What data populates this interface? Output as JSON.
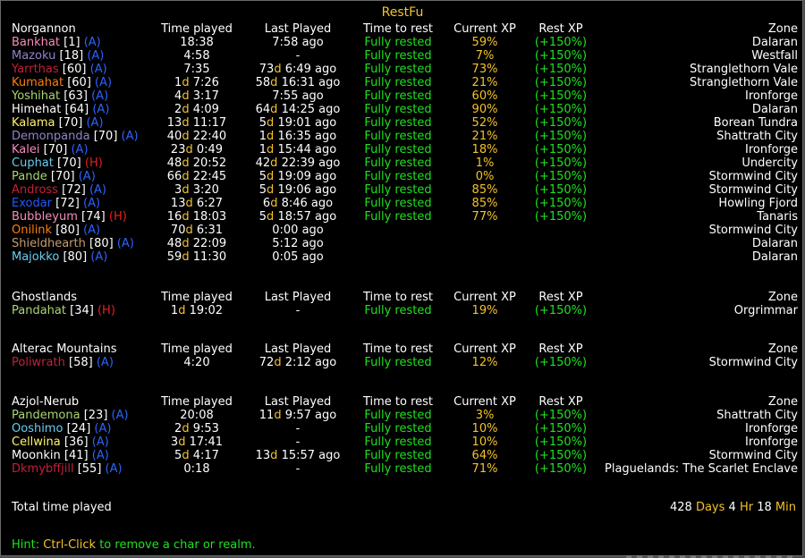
{
  "title": "RestFu",
  "headers": {
    "time_played": "Time played",
    "last_played": "Last Played",
    "time_to_rest": "Time to rest",
    "current_xp": "Current XP",
    "rest_xp": "Rest XP",
    "zone": "Zone"
  },
  "colors": {
    "gold": "#f4c22a",
    "green": "#1ee21e",
    "alliance": "#2b64ff",
    "horde": "#e62020"
  },
  "realms": [
    {
      "name": "Norgannon",
      "chars": [
        {
          "name": "Bankhat",
          "level": "1",
          "faction": "A",
          "color": "#f58cba",
          "time": [
            [
              "",
              "18:38"
            ]
          ],
          "last": [
            [
              "",
              "7:58 ago"
            ]
          ],
          "rest": "Fully rested",
          "xp": "59%",
          "rxp": "(+150%)",
          "zone": "Dalaran"
        },
        {
          "name": "Mazoku",
          "level": "18",
          "faction": "A",
          "color": "#9482c9",
          "time": [
            [
              "",
              "4:58"
            ]
          ],
          "last": [
            [
              "",
              "-"
            ]
          ],
          "rest": "Fully rested",
          "xp": "7%",
          "rxp": "(+150%)",
          "zone": "Westfall"
        },
        {
          "name": "Yarrthas",
          "level": "60",
          "faction": "A",
          "color": "#c41f3b",
          "time": [
            [
              "",
              "7:35"
            ]
          ],
          "last": [
            [
              "73",
              "d"
            ],
            [
              "",
              "6:49 ago"
            ]
          ],
          "rest": "Fully rested",
          "xp": "73%",
          "rxp": "(+150%)",
          "zone": "Stranglethorn Vale"
        },
        {
          "name": "Kumahat",
          "level": "60",
          "faction": "A",
          "color": "#ff7d0a",
          "time": [
            [
              "1",
              "d"
            ],
            [
              "",
              "7:26"
            ]
          ],
          "last": [
            [
              "58",
              "d"
            ],
            [
              "",
              "16:31 ago"
            ]
          ],
          "rest": "Fully rested",
          "xp": "21%",
          "rxp": "(+150%)",
          "zone": "Stranglethorn Vale"
        },
        {
          "name": "Yoshihat",
          "level": "63",
          "faction": "A",
          "color": "#abd473",
          "time": [
            [
              "4",
              "d"
            ],
            [
              "",
              "3:17"
            ]
          ],
          "last": [
            [
              "",
              "7:55 ago"
            ]
          ],
          "rest": "Fully rested",
          "xp": "60%",
          "rxp": "(+150%)",
          "zone": "Ironforge"
        },
        {
          "name": "Himehat",
          "level": "64",
          "faction": "A",
          "color": "#ffffff",
          "time": [
            [
              "2",
              "d"
            ],
            [
              "",
              "4:09"
            ]
          ],
          "last": [
            [
              "64",
              "d"
            ],
            [
              "",
              "14:25 ago"
            ]
          ],
          "rest": "Fully rested",
          "xp": "90%",
          "rxp": "(+150%)",
          "zone": "Dalaran"
        },
        {
          "name": "Kalama",
          "level": "70",
          "faction": "A",
          "color": "#fff569",
          "time": [
            [
              "13",
              "d"
            ],
            [
              "",
              "11:17"
            ]
          ],
          "last": [
            [
              "5",
              "d"
            ],
            [
              "",
              "19:01 ago"
            ]
          ],
          "rest": "Fully rested",
          "xp": "52%",
          "rxp": "(+150%)",
          "zone": "Borean Tundra"
        },
        {
          "name": "Demonpanda",
          "level": "70",
          "faction": "A",
          "color": "#9482c9",
          "time": [
            [
              "40",
              "d"
            ],
            [
              "",
              "22:40"
            ]
          ],
          "last": [
            [
              "1",
              "d"
            ],
            [
              "",
              "16:35 ago"
            ]
          ],
          "rest": "Fully rested",
          "xp": "21%",
          "rxp": "(+150%)",
          "zone": "Shattrath City"
        },
        {
          "name": "Kalei",
          "level": "70",
          "faction": "A",
          "color": "#f58cba",
          "time": [
            [
              "23",
              "d"
            ],
            [
              "",
              "0:49"
            ]
          ],
          "last": [
            [
              "1",
              "d"
            ],
            [
              "",
              "15:44 ago"
            ]
          ],
          "rest": "Fully rested",
          "xp": "18%",
          "rxp": "(+150%)",
          "zone": "Ironforge"
        },
        {
          "name": "Cuphat",
          "level": "70",
          "faction": "H",
          "color": "#69ccf0",
          "time": [
            [
              "48",
              "d"
            ],
            [
              "",
              "20:52"
            ]
          ],
          "last": [
            [
              "42",
              "d"
            ],
            [
              "",
              "22:39 ago"
            ]
          ],
          "rest": "Fully rested",
          "xp": "1%",
          "rxp": "(+150%)",
          "zone": "Undercity"
        },
        {
          "name": "Pande",
          "level": "70",
          "faction": "A",
          "color": "#abd473",
          "time": [
            [
              "66",
              "d"
            ],
            [
              "",
              "22:45"
            ]
          ],
          "last": [
            [
              "5",
              "d"
            ],
            [
              "",
              "19:09 ago"
            ]
          ],
          "rest": "Fully rested",
          "xp": "0%",
          "rxp": "(+150%)",
          "zone": "Stormwind City"
        },
        {
          "name": "Andross",
          "level": "72",
          "faction": "A",
          "color": "#c41f3b",
          "time": [
            [
              "3",
              "d"
            ],
            [
              "",
              "3:20"
            ]
          ],
          "last": [
            [
              "5",
              "d"
            ],
            [
              "",
              "19:06 ago"
            ]
          ],
          "rest": "Fully rested",
          "xp": "85%",
          "rxp": "(+150%)",
          "zone": "Stormwind City"
        },
        {
          "name": "Exodar",
          "level": "72",
          "faction": "A",
          "color": "#2459ff",
          "time": [
            [
              "13",
              "d"
            ],
            [
              "",
              "6:27"
            ]
          ],
          "last": [
            [
              "6",
              "d"
            ],
            [
              "",
              "8:46 ago"
            ]
          ],
          "rest": "Fully rested",
          "xp": "85%",
          "rxp": "(+150%)",
          "zone": "Howling Fjord"
        },
        {
          "name": "Bubbleyum",
          "level": "74",
          "faction": "H",
          "color": "#f58cba",
          "time": [
            [
              "16",
              "d"
            ],
            [
              "",
              "18:03"
            ]
          ],
          "last": [
            [
              "5",
              "d"
            ],
            [
              "",
              "18:57 ago"
            ]
          ],
          "rest": "Fully rested",
          "xp": "77%",
          "rxp": "(+150%)",
          "zone": "Tanaris"
        },
        {
          "name": "Onilink",
          "level": "80",
          "faction": "A",
          "color": "#ff7d0a",
          "time": [
            [
              "70",
              "d"
            ],
            [
              "",
              "6:31"
            ]
          ],
          "last": [
            [
              "",
              "0:00 ago"
            ]
          ],
          "rest": "",
          "xp": "",
          "rxp": "",
          "zone": "Stormwind City"
        },
        {
          "name": "Shieldhearth",
          "level": "80",
          "faction": "A",
          "color": "#c79c6e",
          "time": [
            [
              "48",
              "d"
            ],
            [
              "",
              "22:09"
            ]
          ],
          "last": [
            [
              "",
              "5:12 ago"
            ]
          ],
          "rest": "",
          "xp": "",
          "rxp": "",
          "zone": "Dalaran"
        },
        {
          "name": "Majokko",
          "level": "80",
          "faction": "A",
          "color": "#69ccf0",
          "time": [
            [
              "59",
              "d"
            ],
            [
              "",
              "11:30"
            ]
          ],
          "last": [
            [
              "",
              "0:05 ago"
            ]
          ],
          "rest": "",
          "xp": "",
          "rxp": "",
          "zone": "Dalaran"
        }
      ]
    },
    {
      "name": "Ghostlands",
      "chars": [
        {
          "name": "Pandahat",
          "level": "34",
          "faction": "H",
          "color": "#abd473",
          "time": [
            [
              "1",
              "d"
            ],
            [
              "",
              "19:02"
            ]
          ],
          "last": [
            [
              "",
              "-"
            ]
          ],
          "rest": "Fully rested",
          "xp": "19%",
          "rxp": "(+150%)",
          "zone": "Orgrimmar"
        }
      ]
    },
    {
      "name": "Alterac Mountains",
      "chars": [
        {
          "name": "Poliwrath",
          "level": "58",
          "faction": "A",
          "color": "#c41f3b",
          "time": [
            [
              "",
              "4:20"
            ]
          ],
          "last": [
            [
              "72",
              "d"
            ],
            [
              "",
              "2:12 ago"
            ]
          ],
          "rest": "Fully rested",
          "xp": "12%",
          "rxp": "(+150%)",
          "zone": "Stormwind City"
        }
      ]
    },
    {
      "name": "Azjol-Nerub",
      "chars": [
        {
          "name": "Pandemona",
          "level": "23",
          "faction": "A",
          "color": "#abd473",
          "time": [
            [
              "",
              "20:08"
            ]
          ],
          "last": [
            [
              "11",
              "d"
            ],
            [
              "",
              "9:57 ago"
            ]
          ],
          "rest": "Fully rested",
          "xp": "3%",
          "rxp": "(+150%)",
          "zone": "Shattrath City"
        },
        {
          "name": "Ooshimo",
          "level": "24",
          "faction": "A",
          "color": "#69ccf0",
          "time": [
            [
              "2",
              "d"
            ],
            [
              "",
              "9:53"
            ]
          ],
          "last": [
            [
              "",
              "-"
            ]
          ],
          "rest": "Fully rested",
          "xp": "10%",
          "rxp": "(+150%)",
          "zone": "Ironforge"
        },
        {
          "name": "Cellwina",
          "level": "36",
          "faction": "A",
          "color": "#fff569",
          "time": [
            [
              "3",
              "d"
            ],
            [
              "",
              "17:41"
            ]
          ],
          "last": [
            [
              "",
              "-"
            ]
          ],
          "rest": "Fully rested",
          "xp": "10%",
          "rxp": "(+150%)",
          "zone": "Ironforge"
        },
        {
          "name": "Moonkin",
          "level": "41",
          "faction": "A",
          "color": "#ffffff",
          "time": [
            [
              "5",
              "d"
            ],
            [
              "",
              "4:17"
            ]
          ],
          "last": [
            [
              "13",
              "d"
            ],
            [
              "",
              "15:57 ago"
            ]
          ],
          "rest": "Fully rested",
          "xp": "64%",
          "rxp": "(+150%)",
          "zone": "Stormwind City"
        },
        {
          "name": "Dkmybffjill",
          "level": "55",
          "faction": "A",
          "color": "#c41f3b",
          "time": [
            [
              "",
              "0:18"
            ]
          ],
          "last": [
            [
              "",
              "-"
            ]
          ],
          "rest": "Fully rested",
          "xp": "71%",
          "rxp": "(+150%)",
          "zone": "Plaguelands: The Scarlet Enclave"
        }
      ]
    }
  ],
  "total": {
    "label": "Total time played",
    "days": "428",
    "days_unit": "Days",
    "hours": "4",
    "hours_unit": "Hr",
    "minutes": "18",
    "minutes_unit": "Min"
  },
  "hint": {
    "prefix": "Hint:",
    "key": "Ctrl-Click",
    "suffix": "to remove a char or realm."
  }
}
